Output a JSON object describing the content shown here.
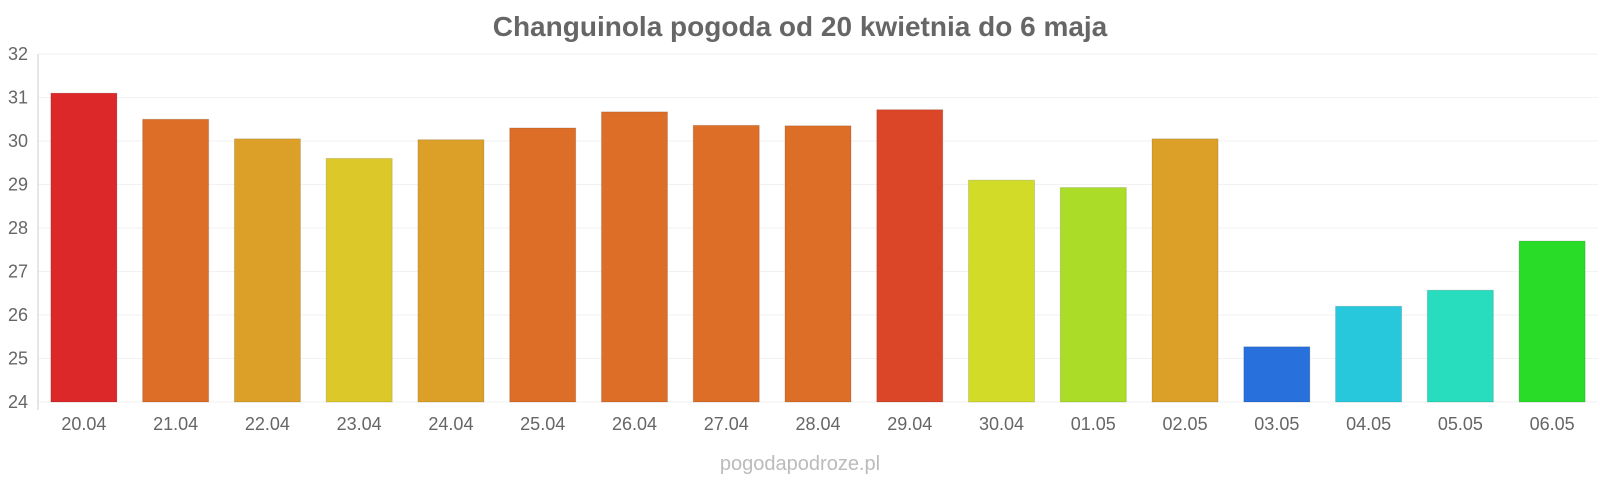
{
  "chart_data": {
    "type": "bar",
    "title": "Changuinola pogoda od 20 kwietnia do 6 maja",
    "categories": [
      "20.04",
      "21.04",
      "22.04",
      "23.04",
      "24.04",
      "25.04",
      "26.04",
      "27.04",
      "28.04",
      "29.04",
      "30.04",
      "01.05",
      "02.05",
      "03.05",
      "04.05",
      "05.05",
      "06.05"
    ],
    "values": [
      31.1,
      30.5,
      30.05,
      29.6,
      30.03,
      30.3,
      30.67,
      30.36,
      30.35,
      30.72,
      29.1,
      28.93,
      30.05,
      25.27,
      26.2,
      26.57,
      27.7
    ],
    "colors": [
      "#dc2828",
      "#dc6e28",
      "#dca028",
      "#dcc828",
      "#dca028",
      "#dc6e28",
      "#dc6e28",
      "#dc6e28",
      "#dc6e28",
      "#dc4628",
      "#d2dc28",
      "#aadc28",
      "#dca028",
      "#2870dc",
      "#28c8dc",
      "#28dcbe",
      "#28dc28"
    ],
    "ylim": [
      24,
      32
    ],
    "yticks": [
      24,
      25,
      26,
      27,
      28,
      29,
      30,
      31,
      32
    ],
    "xlabel": "",
    "ylabel": "",
    "grid": true,
    "legend": "none"
  },
  "footer": {
    "credit": "pogodapodroze.pl"
  }
}
